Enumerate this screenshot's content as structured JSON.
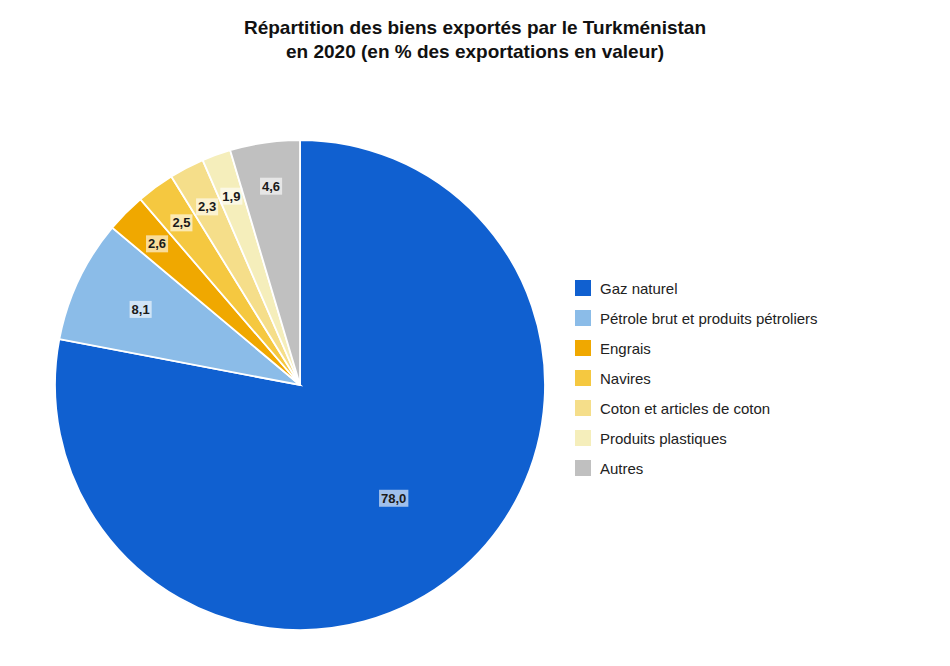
{
  "chart_data": {
    "type": "pie",
    "title": "Répartition des biens exportés par le Turkménistan\nen 2020 (en % des exportations en valeur)",
    "categories": [
      "Gaz naturel",
      "Pétrole brut et produits pétroliers",
      "Engrais",
      "Navires",
      "Coton et articles de coton",
      "Produits plastiques",
      "Autres"
    ],
    "values": [
      78.0,
      8.1,
      2.6,
      2.5,
      2.3,
      1.9,
      4.6
    ],
    "value_labels": [
      "78,0",
      "8,1",
      "2,6",
      "2,5",
      "2,3",
      "1,9",
      "4,6"
    ],
    "colors": [
      "#1060d0",
      "#8bbce8",
      "#f0a800",
      "#f5c840",
      "#f5de8a",
      "#f5eebb",
      "#c0c0c0"
    ],
    "data_labels": true,
    "legend": "right"
  }
}
